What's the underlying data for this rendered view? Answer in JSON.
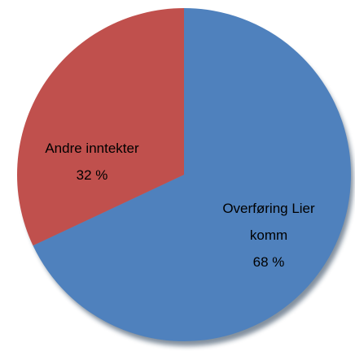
{
  "chart_data": {
    "type": "pie",
    "categories": [
      "Overføring Lier komm",
      "Andre inntekter"
    ],
    "values": [
      68,
      32
    ],
    "value_labels": [
      "68 %",
      "32 %"
    ],
    "colors": [
      "#4f81bd",
      "#c0504d"
    ]
  }
}
